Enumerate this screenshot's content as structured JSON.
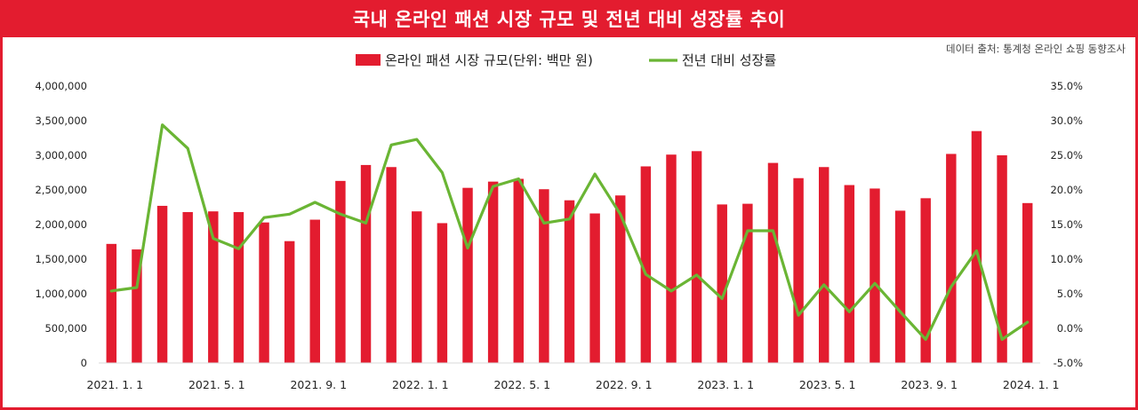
{
  "title": "국내 온라인 패션 시장 규모 및 전년 대비 성장률 추이",
  "source": "데이터 출처: 통계청 온라인 쇼핑 동향조사",
  "colors": {
    "bar": "#e31c2f",
    "line": "#6ab534",
    "frame": "#e31c2f"
  },
  "chart_data": {
    "type": "bar",
    "categories": [
      "2021.1",
      "2021.2",
      "2021.3",
      "2021.4",
      "2021.5",
      "2021.6",
      "2021.7",
      "2021.8",
      "2021.9",
      "2021.10",
      "2021.11",
      "2021.12",
      "2022.1",
      "2022.2",
      "2022.3",
      "2022.4",
      "2022.5",
      "2022.6",
      "2022.7",
      "2022.8",
      "2022.9",
      "2022.10",
      "2022.11",
      "2022.12",
      "2023.1",
      "2023.2",
      "2023.3",
      "2023.4",
      "2023.5",
      "2023.6",
      "2023.7",
      "2023.8",
      "2023.9",
      "2023.10",
      "2023.11",
      "2023.12",
      "2024.1"
    ],
    "series": [
      {
        "name": "온라인 패션 시장 규모(단위: 백만 원)",
        "type": "bar",
        "axis": "left",
        "values": [
          1720000,
          1640000,
          2270000,
          2180000,
          2190000,
          2180000,
          2030000,
          1760000,
          2070000,
          2630000,
          2860000,
          2830000,
          2190000,
          2020000,
          2530000,
          2620000,
          2660000,
          2510000,
          2350000,
          2160000,
          2420000,
          2840000,
          3010000,
          3060000,
          2290000,
          2300000,
          2890000,
          2670000,
          2830000,
          2570000,
          2520000,
          2200000,
          2380000,
          3020000,
          3350000,
          3000000,
          2310000
        ]
      },
      {
        "name": "전년 대비 성장률",
        "type": "line",
        "axis": "right",
        "values": [
          5.4,
          5.9,
          29.4,
          26.0,
          13.0,
          11.5,
          16.0,
          16.5,
          18.2,
          16.5,
          15.2,
          26.5,
          27.3,
          22.5,
          11.6,
          20.5,
          21.6,
          15.2,
          15.8,
          22.3,
          16.5,
          7.8,
          5.4,
          7.7,
          4.3,
          14.1,
          14.1,
          1.9,
          6.3,
          2.4,
          6.5,
          2.4,
          -1.6,
          6.0,
          11.2,
          -1.6,
          0.9
        ]
      }
    ],
    "x_tick_labels": [
      "2021. 1. 1",
      "2021. 5. 1",
      "2021. 9. 1",
      "2022. 1. 1",
      "2022. 5. 1",
      "2022. 9. 1",
      "2023. 1. 1",
      "2023. 5. 1",
      "2023. 9. 1",
      "2024. 1. 1"
    ],
    "x_tick_every": 4,
    "y_left": {
      "min": 0,
      "max": 4000000,
      "step": 500000,
      "tick_labels": [
        "0",
        "500,000",
        "1,000,000",
        "1,500,000",
        "2,000,000",
        "2,500,000",
        "3,000,000",
        "3,500,000",
        "4,000,000"
      ]
    },
    "y_right": {
      "min": -5,
      "max": 35,
      "step": 5,
      "tick_labels": [
        "-5.0%",
        "0.0%",
        "5.0%",
        "10.0%",
        "15.0%",
        "20.0%",
        "25.0%",
        "30.0%",
        "35.0%"
      ]
    },
    "legend_placement": "top-center",
    "grid": false
  }
}
